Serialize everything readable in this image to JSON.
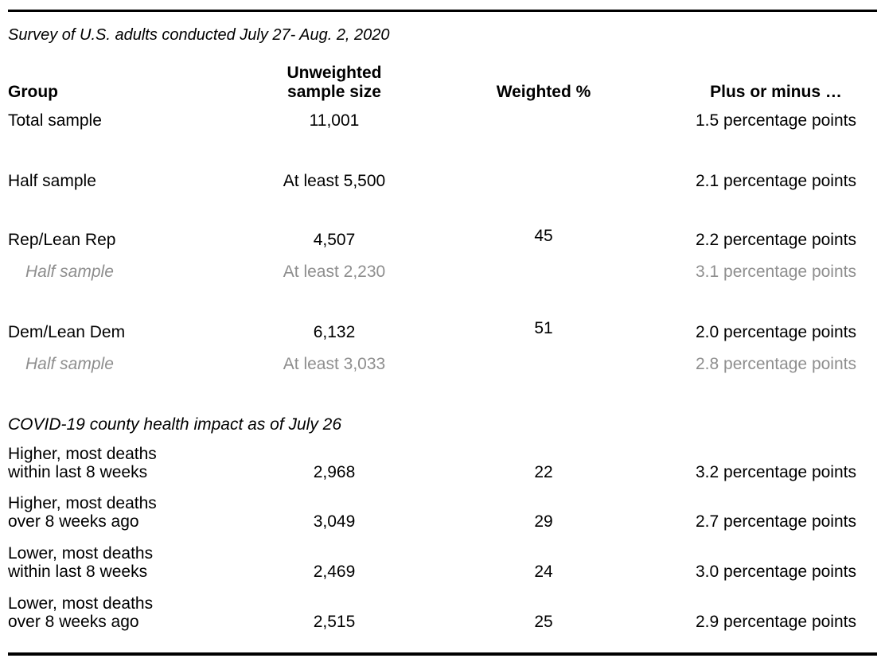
{
  "page": {
    "subtitle": "Survey of U.S. adults conducted July 27- Aug. 2, 2020"
  },
  "colors": {
    "text": "#000000",
    "muted_gray": "#8e8e8e",
    "rule": "#000000"
  },
  "table": {
    "columns": [
      "Group",
      "Unweighted\nsample size",
      "Weighted %",
      "Plus or minus …"
    ],
    "section_header": "COVID-19 county health impact as of July 26",
    "rows": [
      {
        "label": "Total sample",
        "unweighted": "11,001",
        "weighted": "",
        "plus_minus": "1.5 percentage points"
      },
      {
        "label": "Half sample",
        "unweighted": "At least 5,500",
        "weighted": "",
        "plus_minus": "2.1 percentage points"
      },
      {
        "label": "Rep/Lean Rep",
        "unweighted": "4,507",
        "weighted": "45",
        "plus_minus": "2.2 percentage points"
      },
      {
        "label": "Half sample",
        "unweighted": "At least 2,230",
        "weighted": "",
        "plus_minus": "3.1 percentage points"
      },
      {
        "label": "Dem/Lean Dem",
        "unweighted": "6,132",
        "weighted": "51",
        "plus_minus": "2.0 percentage points"
      },
      {
        "label": "Half sample",
        "unweighted": "At least 3,033",
        "weighted": "",
        "plus_minus": "2.8 percentage points"
      },
      {
        "label": "Higher, most deaths\nwithin last 8 weeks",
        "unweighted": "2,968",
        "weighted": "22",
        "plus_minus": "3.2 percentage points"
      },
      {
        "label": "Higher, most deaths\nover 8 weeks ago",
        "unweighted": "3,049",
        "weighted": "29",
        "plus_minus": "2.7 percentage points"
      },
      {
        "label": "Lower, most deaths\nwithin last 8 weeks",
        "unweighted": "2,469",
        "weighted": "24",
        "plus_minus": "3.0 percentage points"
      },
      {
        "label": "Lower, most deaths\nover 8 weeks ago",
        "unweighted": "2,515",
        "weighted": "25",
        "plus_minus": "2.9 percentage points"
      }
    ]
  },
  "chart_data": {
    "type": "table",
    "subtitle": "Survey of U.S. adults conducted July 27- Aug. 2, 2020",
    "columns": [
      "Group",
      "Unweighted sample size",
      "Weighted %",
      "Plus or minus …"
    ],
    "rows": [
      [
        "Total sample",
        "11,001",
        "",
        "1.5 percentage points"
      ],
      [
        "Half sample",
        "At least 5,500",
        "",
        "2.1 percentage points"
      ],
      [
        "Rep/Lean Rep",
        "4,507",
        "45",
        "2.2 percentage points"
      ],
      [
        "Half sample",
        "At least 2,230",
        "",
        "3.1 percentage points"
      ],
      [
        "Dem/Lean Dem",
        "6,132",
        "51",
        "2.0 percentage points"
      ],
      [
        "Half sample",
        "At least 3,033",
        "",
        "2.8 percentage points"
      ],
      [
        "Higher, most deaths within last 8 weeks",
        "2,968",
        "22",
        "3.2 percentage points"
      ],
      [
        "Higher, most deaths over 8 weeks ago",
        "3,049",
        "29",
        "2.7 percentage points"
      ],
      [
        "Lower, most deaths within last 8 weeks",
        "2,469",
        "24",
        "3.0 percentage points"
      ],
      [
        "Lower, most deaths over 8 weeks ago",
        "2,515",
        "25",
        "2.9 percentage points"
      ]
    ],
    "section_header_before_row": 6,
    "section_header": "COVID-19 county health impact as of July 26",
    "notes": "Rows 3 and 5 (Half sample) are gray, italic-label, indented sub-rows of the party rows above them."
  }
}
